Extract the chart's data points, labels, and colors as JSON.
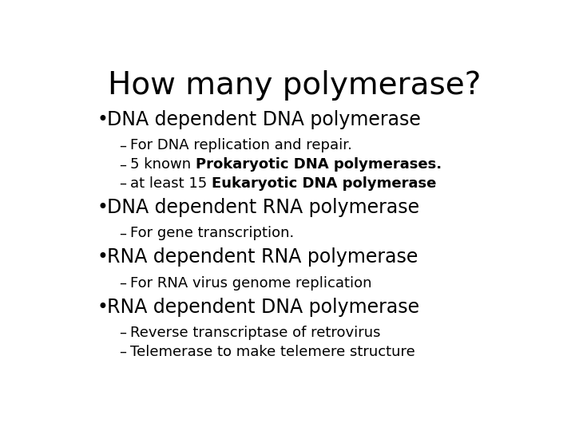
{
  "title": "How many polymerase?",
  "background_color": "#ffffff",
  "text_color": "#000000",
  "title_fontsize": 28,
  "bullet_fontsize": 17,
  "sub_fontsize": 13,
  "content": [
    {
      "type": "bullet",
      "text": "DNA dependent DNA polymerase",
      "subs": [
        [
          {
            "text": "For DNA replication and repair.",
            "bold": false
          }
        ],
        [
          {
            "text": "5 known ",
            "bold": false
          },
          {
            "text": "Prokaryotic DNA polymerases.",
            "bold": true
          }
        ],
        [
          {
            "text": "at least 15 ",
            "bold": false
          },
          {
            "text": "Eukaryotic DNA polymerase",
            "bold": true
          }
        ]
      ]
    },
    {
      "type": "bullet",
      "text": "DNA dependent RNA polymerase",
      "subs": [
        [
          {
            "text": "For gene transcription.",
            "bold": false
          }
        ]
      ]
    },
    {
      "type": "bullet",
      "text": "RNA dependent RNA polymerase",
      "subs": [
        [
          {
            "text": "For RNA virus genome replication",
            "bold": false
          }
        ]
      ]
    },
    {
      "type": "bullet",
      "text": "RNA dependent DNA polymerase",
      "subs": [
        [
          {
            "text": "Reverse transcriptase of retrovirus",
            "bold": false
          }
        ],
        [
          {
            "text": "Telemerase to make telemere structure",
            "bold": false
          }
        ]
      ]
    }
  ]
}
